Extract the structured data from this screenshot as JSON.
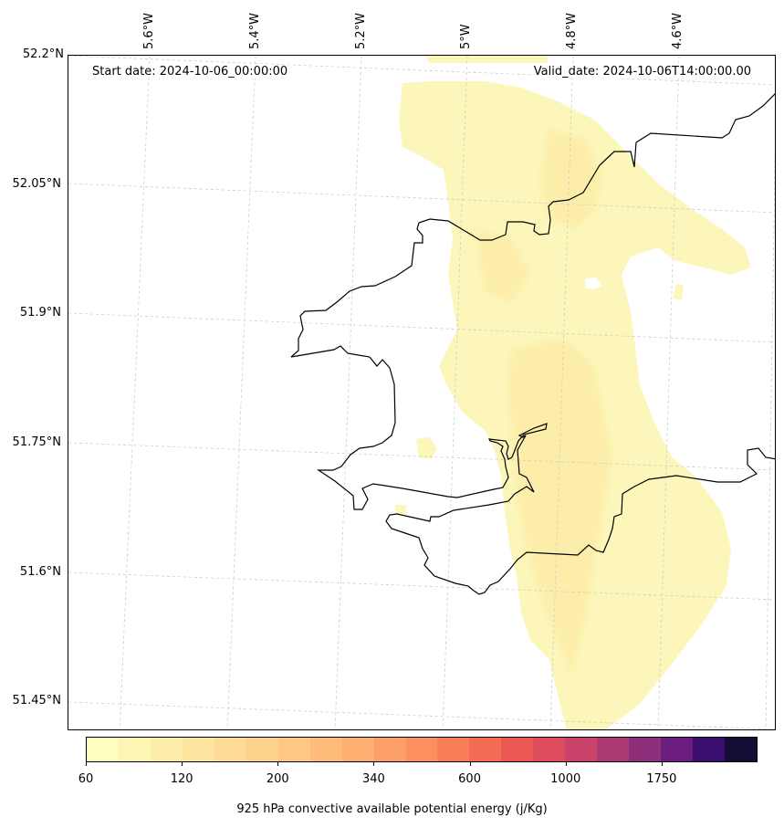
{
  "header": {
    "start_date": "Start date: 2024-10-06_00:00:00",
    "valid_date": "Valid_date: 2024-10-06T14:00:00.00"
  },
  "axes": {
    "lat_labels": [
      "52.2°N",
      "52.05°N",
      "51.9°N",
      "51.75°N",
      "51.6°N",
      "51.45°N"
    ],
    "lon_labels": [
      "5.6°W",
      "5.4°W",
      "5.2°W",
      "5°W",
      "4.8°W",
      "4.6°W"
    ]
  },
  "colorbar": {
    "label": "925 hPa convective available potential energy (j/Kg)",
    "tick_labels": [
      "60",
      "120",
      "200",
      "340",
      "600",
      "1000",
      "1750"
    ],
    "colors": [
      "#fcfdbf",
      "#fcf5b4",
      "#fdedaa",
      "#fde5a0",
      "#fedb96",
      "#fed18c",
      "#fec783",
      "#febb7a",
      "#fdae71",
      "#fd9f68",
      "#fc8f5f",
      "#f97e58",
      "#f46b55",
      "#ec5955",
      "#dd4c5c",
      "#c8426a",
      "#ac3a75",
      "#8e2f7c",
      "#6b1d80",
      "#3b0f70"
    ],
    "end_color": "#140e36"
  },
  "map": {
    "coastline_color": "#000000",
    "gridline_color": "#cccccc",
    "cape_min_color": "#fcf7bb",
    "cape_max_color": "#fde9a6"
  }
}
